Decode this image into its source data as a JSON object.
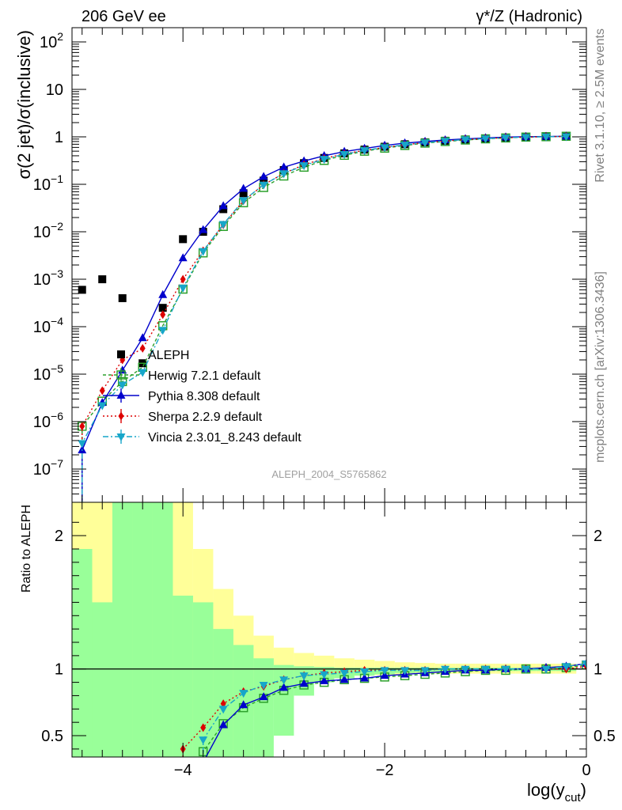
{
  "header": {
    "left": "206 GeV ee",
    "right": "γ*/Z (Hadronic)"
  },
  "side_labels": {
    "rivet": "Rivet 3.1.10, ≥ 2.5M events",
    "mcplots": "mcplots.cern.ch [arXiv:1306.3436]"
  },
  "analysis_id": "ALEPH_2004_S5765862",
  "chart_data": [
    {
      "type": "scatter",
      "panel": "main",
      "ylabel": "σ(2 jet)/σ(inclusive)",
      "y_scale": "log",
      "xlim": [
        -5.1,
        0
      ],
      "ylim": [
        2e-08,
        200
      ],
      "y_ticks": [
        {
          "value": 1e-07,
          "base": "10",
          "exp": "−7"
        },
        {
          "value": 1e-06,
          "base": "10",
          "exp": "−6"
        },
        {
          "value": 1e-05,
          "base": "10",
          "exp": "−5"
        },
        {
          "value": 0.0001,
          "base": "10",
          "exp": "−4"
        },
        {
          "value": 0.001,
          "base": "10",
          "exp": "−3"
        },
        {
          "value": 0.01,
          "base": "10",
          "exp": "−2"
        },
        {
          "value": 0.1,
          "base": "10",
          "exp": "−1"
        },
        {
          "value": 1,
          "base": "1",
          "exp": ""
        },
        {
          "value": 10,
          "base": "10",
          "exp": ""
        },
        {
          "value": 100,
          "base": "10",
          "exp": "2"
        }
      ],
      "x": [
        -5.0,
        -4.8,
        -4.6,
        -4.4,
        -4.2,
        -4.0,
        -3.8,
        -3.6,
        -3.4,
        -3.2,
        -3.0,
        -2.8,
        -2.6,
        -2.4,
        -2.2,
        -2.0,
        -1.8,
        -1.6,
        -1.4,
        -1.2,
        -1.0,
        -0.8,
        -0.6,
        -0.4,
        -0.2
      ],
      "legend_placement": "center-left",
      "series": [
        {
          "name": "ALEPH",
          "color": "#000000",
          "marker": "square-filled",
          "values": [
            0.0006,
            0.001,
            0.0004,
            1.7e-05,
            0.00025,
            0.007,
            0.01,
            0.03,
            0.065,
            0.12,
            0.2,
            0.28,
            0.36,
            0.45,
            0.54,
            0.62,
            0.7,
            0.77,
            0.83,
            0.88,
            0.92,
            0.96,
            0.99,
            1.01,
            1.02
          ]
        },
        {
          "name": "Herwig 7.2.1 default",
          "color": "#2ca02c",
          "marker": "square-open",
          "dash": "4,3",
          "values": [
            8e-07,
            2.7e-06,
            7e-06,
            1.4e-05,
            0.000105,
            0.00062,
            0.0036,
            0.013,
            0.041,
            0.086,
            0.15,
            0.23,
            0.32,
            0.41,
            0.5,
            0.58,
            0.66,
            0.74,
            0.8,
            0.86,
            0.91,
            0.95,
            0.99,
            1.01,
            1.03
          ]
        },
        {
          "name": "Pythia 8.308 default",
          "color": "#0000cc",
          "marker": "triangle-up",
          "dash": "",
          "values": [
            2.5e-07,
            2.5e-06,
            1.2e-05,
            5.8e-05,
            0.00047,
            0.0028,
            0.011,
            0.035,
            0.081,
            0.145,
            0.23,
            0.31,
            0.4,
            0.49,
            0.57,
            0.66,
            0.74,
            0.8,
            0.86,
            0.91,
            0.95,
            0.99,
            1.01,
            1.02,
            1.03
          ]
        },
        {
          "name": "Sherpa 2.2.9 default",
          "color": "#dd0000",
          "marker": "diamond",
          "dash": "2,3",
          "values": [
            8e-07,
            4.5e-06,
            2e-05,
            3.5e-05,
            0.00018,
            0.001,
            0.004,
            0.014,
            0.045,
            0.098,
            0.17,
            0.26,
            0.35,
            0.44,
            0.52,
            0.6,
            0.68,
            0.76,
            0.82,
            0.88,
            0.92,
            0.96,
            0.99,
            1.01,
            1.02
          ]
        },
        {
          "name": "Vincia 2.3.01_8.243 default",
          "color": "#17a6c9",
          "marker": "triangle-down",
          "dash": "7,3,2,3",
          "values": [
            3.5e-07,
            2.2e-06,
            6e-06,
            1.1e-05,
            8.5e-05,
            0.00066,
            0.0039,
            0.0145,
            0.046,
            0.098,
            0.17,
            0.25,
            0.34,
            0.43,
            0.52,
            0.6,
            0.68,
            0.76,
            0.82,
            0.88,
            0.92,
            0.96,
            0.99,
            1.01,
            1.02
          ]
        }
      ]
    },
    {
      "type": "line",
      "panel": "ratio",
      "ylabel": "Ratio to ALEPH",
      "xlabel": "log(y",
      "xlabel_sub": "cut",
      "xlabel_tail": ")",
      "xlim": [
        -5.1,
        0
      ],
      "ylim": [
        0.34,
        2.25
      ],
      "x_ticks": [
        {
          "value": -4,
          "label": "−4"
        },
        {
          "value": -2,
          "label": "−2"
        },
        {
          "value": 0,
          "label": "0"
        }
      ],
      "y_ticks": [
        {
          "value": 0.5,
          "label": "0.5"
        },
        {
          "value": 1,
          "label": "1"
        },
        {
          "value": 2,
          "label": "2"
        }
      ],
      "band_bins": [
        -5.1,
        -4.9,
        -4.7,
        -4.5,
        -4.3,
        -4.1,
        -3.9,
        -3.7,
        -3.5,
        -3.3,
        -3.1,
        -2.9,
        -2.7,
        -2.5,
        -2.3,
        -2.1,
        -1.9,
        -1.7,
        -1.5,
        -1.3,
        -1.1,
        -0.9,
        -0.7,
        -0.5,
        -0.3,
        -0.1
      ],
      "stat_band_low": [
        0.0,
        0.0,
        0.0,
        0.0,
        0.0,
        0.0,
        0.0,
        0.0,
        0.0,
        0.0,
        0.5,
        0.8,
        0.9,
        0.93,
        0.95,
        0.96,
        0.97,
        0.975,
        0.98,
        0.985,
        0.985,
        0.985,
        0.985,
        0.985,
        0.985
      ],
      "stat_band_high": [
        1.9,
        1.5,
        2.5,
        2.5,
        2.5,
        1.55,
        1.5,
        1.3,
        1.18,
        1.08,
        1.03,
        1.02,
        1.015,
        1.01,
        1.01,
        1.01,
        1.01,
        1.01,
        1.01,
        1.01,
        1.01,
        1.01,
        1.01,
        1.01,
        1.01
      ],
      "tot_band_low": [
        0.0,
        0.35,
        0.0,
        0.35,
        0.0,
        0.0,
        0.0,
        0.4,
        0.65,
        0.8,
        0.86,
        0.9,
        0.93,
        0.94,
        0.95,
        0.955,
        0.96,
        0.965,
        0.965,
        0.965,
        0.965,
        0.965,
        0.965,
        0.965,
        0.965
      ],
      "tot_band_high": [
        2.5,
        2.5,
        2.5,
        2.5,
        2.5,
        2.5,
        1.9,
        1.6,
        1.4,
        1.25,
        1.16,
        1.12,
        1.1,
        1.08,
        1.07,
        1.06,
        1.05,
        1.045,
        1.04,
        1.04,
        1.04,
        1.04,
        1.04,
        1.04,
        1.04
      ],
      "band_colors": {
        "stat": "#99ff99",
        "total": "#ffff99"
      },
      "series": [
        {
          "color": "#2ca02c",
          "marker": "square-open",
          "dash": "4,3",
          "start": -3.8,
          "values": [
            0.38,
            0.59,
            0.71,
            0.78,
            0.84,
            0.88,
            0.9,
            0.92,
            0.93,
            0.94,
            0.95,
            0.96,
            0.97,
            0.98,
            0.99,
            0.99,
            1.0,
            1.0,
            1.01,
            1.03
          ]
        },
        {
          "color": "#0000cc",
          "marker": "triangle-up",
          "dash": "",
          "start": -3.8,
          "values": [
            0.3,
            0.58,
            0.73,
            0.79,
            0.86,
            0.89,
            0.91,
            0.92,
            0.93,
            0.95,
            0.96,
            0.97,
            0.98,
            0.99,
            0.99,
            1.0,
            1.0,
            1.01,
            1.02,
            1.04
          ]
        },
        {
          "color": "#dd0000",
          "marker": "diamond",
          "dash": "2,3",
          "start": -4.0,
          "values": [
            0.4,
            0.56,
            0.74,
            0.83,
            0.87,
            0.92,
            0.95,
            0.97,
            0.98,
            0.99,
            0.99,
            0.99,
            0.99,
            1.0,
            1.0,
            1.0,
            1.0,
            1.0,
            1.0,
            1.0,
            1.02
          ]
        },
        {
          "color": "#17a6c9",
          "marker": "triangle-down",
          "dash": "7,3,2,3",
          "start": -3.8,
          "values": [
            0.47,
            0.7,
            0.82,
            0.88,
            0.92,
            0.95,
            0.96,
            0.97,
            0.98,
            0.99,
            0.99,
            0.99,
            1.0,
            1.0,
            1.0,
            1.0,
            1.0,
            1.0,
            1.02,
            1.04
          ]
        }
      ]
    }
  ]
}
